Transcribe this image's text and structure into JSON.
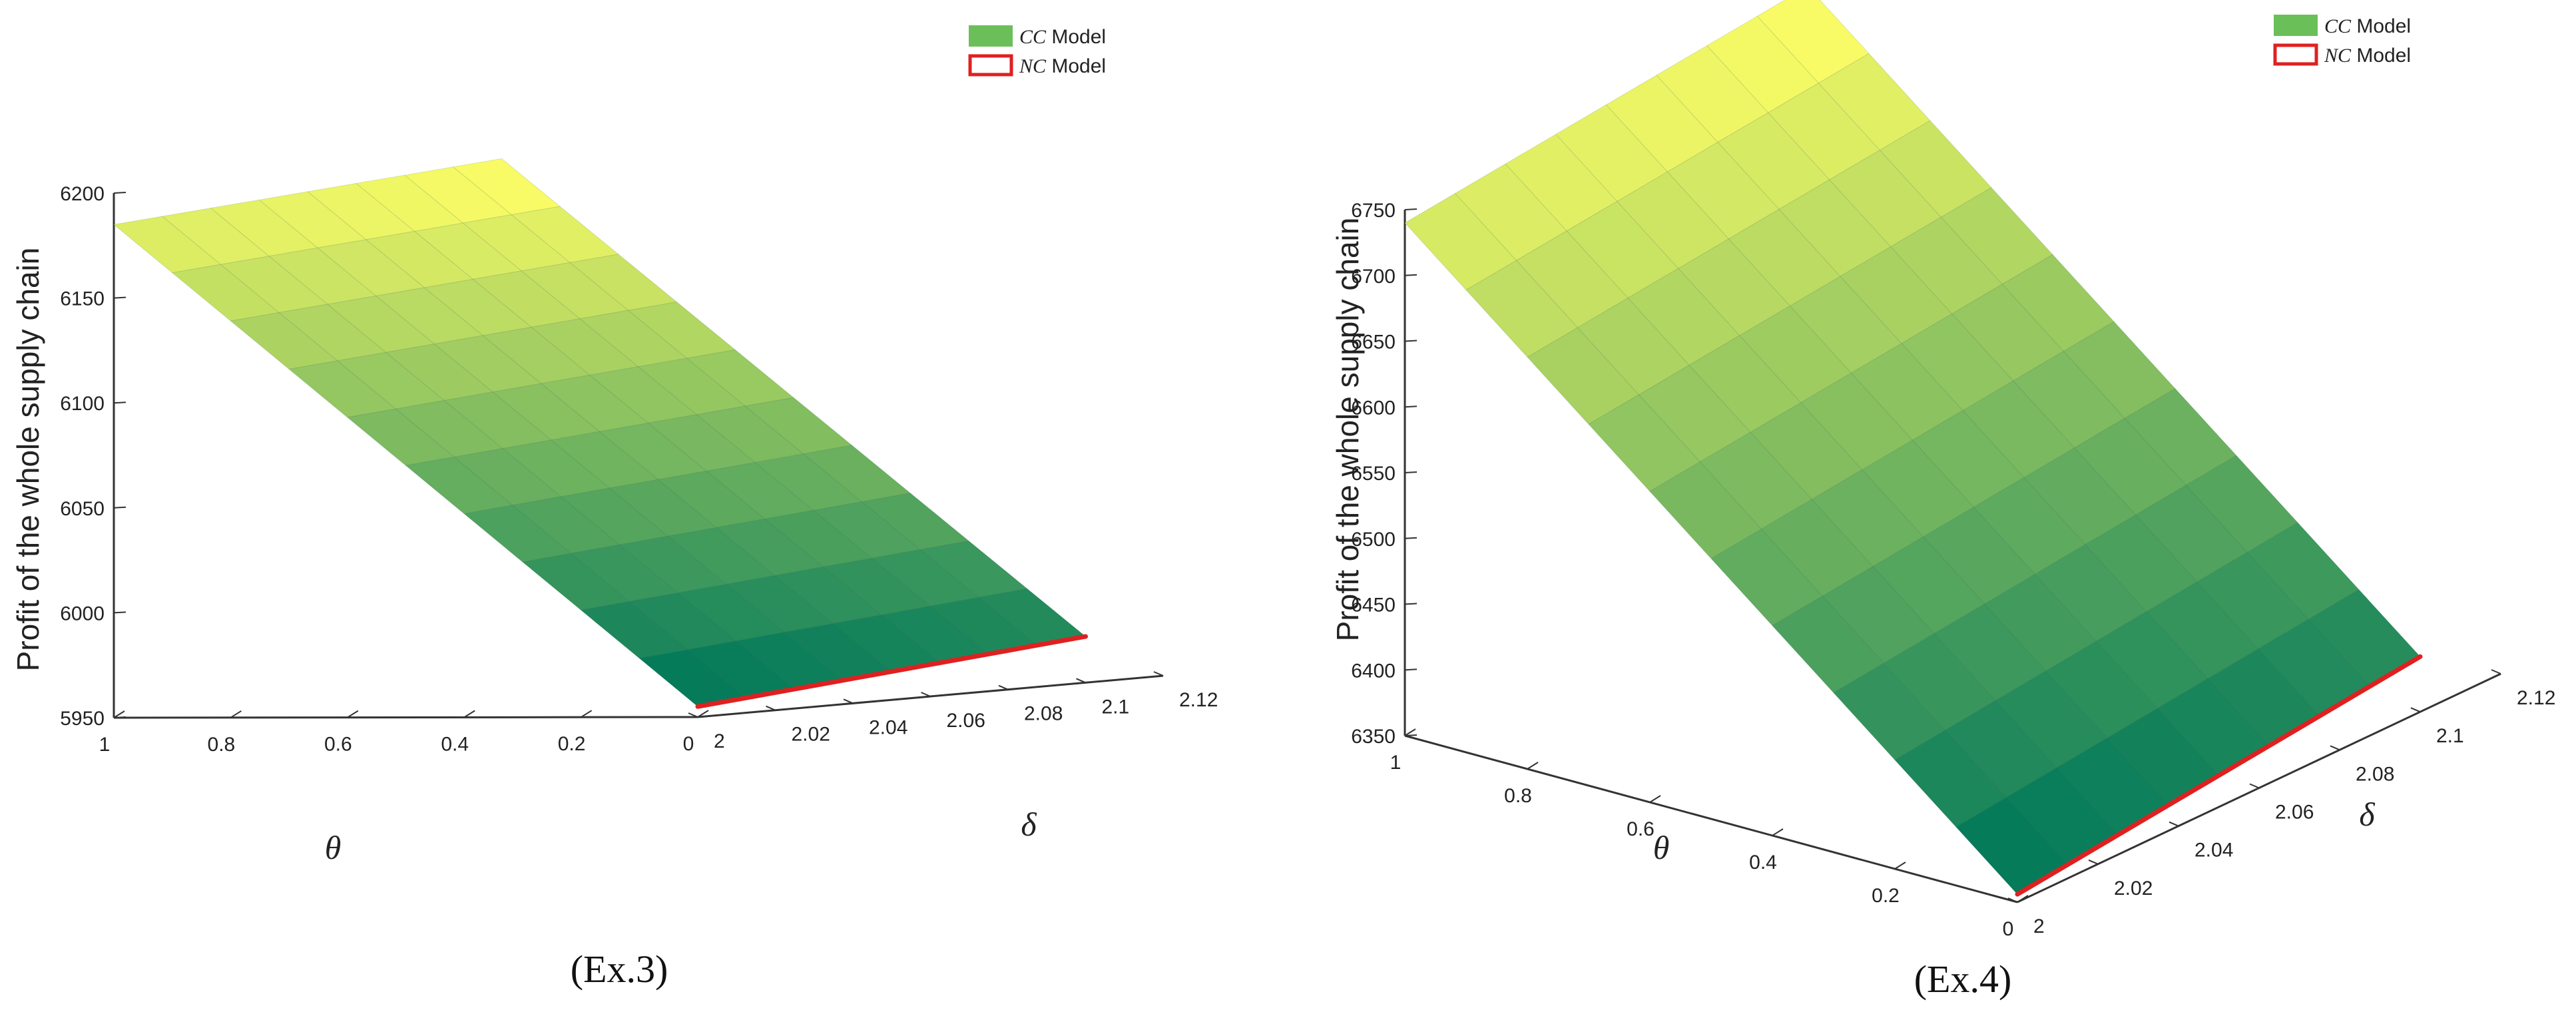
{
  "figure": {
    "panels": [
      {
        "caption": "(Ex.3)",
        "legend": [
          {
            "symbol": "CC",
            "label": "Model",
            "color": "#6bbf59",
            "style": "fill"
          },
          {
            "symbol": "NC",
            "label": "Model",
            "color": "#e02020",
            "style": "outline"
          }
        ]
      },
      {
        "caption": "(Ex.4)",
        "legend": [
          {
            "symbol": "CC",
            "label": "Model",
            "color": "#6bbf59",
            "style": "fill"
          },
          {
            "symbol": "NC",
            "label": "Model",
            "color": "#e02020",
            "style": "outline"
          }
        ]
      }
    ]
  },
  "chart_data": [
    {
      "type": "surface3d",
      "title": "(Ex.3)",
      "zlabel": "Profit of the whole supply chain",
      "xlabel": "θ",
      "ylabel": "δ",
      "x_ticks": [
        "1",
        "0.8",
        "0.6",
        "0.4",
        "0.2",
        "0"
      ],
      "x_range": [
        0,
        1
      ],
      "y_ticks": [
        "2",
        "2.02",
        "2.04",
        "2.06",
        "2.08",
        "2.1",
        "2.12"
      ],
      "y_range": [
        2,
        2.12
      ],
      "z_ticks": [
        "5950",
        "6000",
        "6050",
        "6100",
        "6150",
        "6200"
      ],
      "zlim": [
        5950,
        6200
      ],
      "surface": {
        "name": "CC Model",
        "x_extent": [
          0,
          1
        ],
        "y_extent": [
          2,
          2.1
        ],
        "corners": {
          "theta1_delta2": 6185,
          "theta1_delta2.1": 6200,
          "theta0_delta2": 5955,
          "theta0_delta2.1": 5972
        },
        "colormap": [
          "#00785a",
          "#ffff66"
        ]
      },
      "nc_line": {
        "name": "NC Model",
        "theta": 0,
        "delta": [
          2,
          2.1
        ],
        "values": [
          5955,
          5972
        ],
        "color": "#e02020"
      }
    },
    {
      "type": "surface3d",
      "title": "(Ex.4)",
      "zlabel": "Profit of the whole supply chain",
      "xlabel": "θ",
      "ylabel": "δ",
      "x_ticks": [
        "1",
        "0.8",
        "0.6",
        "0.4",
        "0.2",
        "0"
      ],
      "x_range": [
        0,
        1
      ],
      "y_ticks": [
        "2",
        "2.02",
        "2.04",
        "2.06",
        "2.08",
        "2.1",
        "2.12"
      ],
      "y_range": [
        2,
        2.12
      ],
      "z_ticks": [
        "6350",
        "6400",
        "6450",
        "6500",
        "6550",
        "6600",
        "6650",
        "6700",
        "6750"
      ],
      "zlim": [
        6350,
        6750
      ],
      "surface": {
        "name": "CC Model",
        "x_extent": [
          0,
          1
        ],
        "y_extent": [
          2,
          2.1
        ],
        "corners": {
          "theta1_delta2": 6740,
          "theta1_delta2.1": 6775,
          "theta0_delta2": 6356,
          "theta0_delta2.1": 6392
        },
        "colormap": [
          "#00785a",
          "#ffff66"
        ]
      },
      "nc_line": {
        "name": "NC Model",
        "theta": 0,
        "delta": [
          2,
          2.1
        ],
        "values": [
          6356,
          6392
        ],
        "color": "#e02020"
      }
    }
  ]
}
